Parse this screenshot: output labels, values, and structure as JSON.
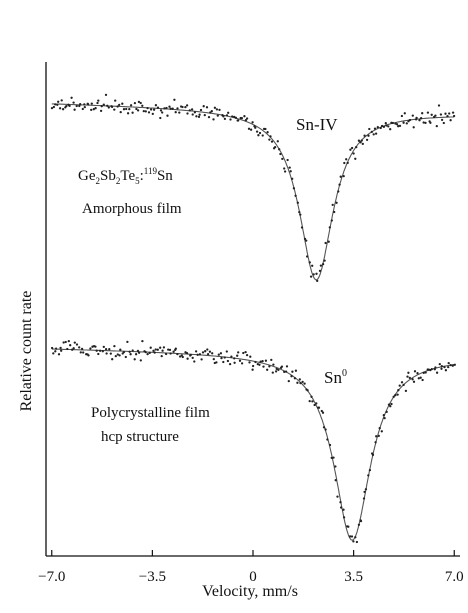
{
  "chart_data": {
    "type": "scatter",
    "xlabel": "Velocity, mm/s",
    "ylabel": "Relative count rate",
    "xlim": [
      -7.2,
      7.2
    ],
    "x_ticks": [
      -7.0,
      -3.5,
      0,
      3.5,
      7.0
    ],
    "x_tick_labels": [
      "−7.0",
      "−3.5",
      "0",
      "3.5",
      "7.0"
    ],
    "y_ticks_shown": false,
    "colors": {
      "points": "#222222",
      "fit": "#555555",
      "axis": "#111111"
    },
    "series": [
      {
        "name": "Sn-IV",
        "label": "Sn-IV",
        "position": "upper",
        "fit": {
          "shape": "lorentzian",
          "center": 2.2,
          "half_width": 0.72,
          "depth": 0.92,
          "baseline_slope": -0.004
        },
        "annotation": [
          "Ge₂Sb₂Te₅:¹¹⁹Sn",
          "Amorphous film"
        ]
      },
      {
        "name": "Sn⁰",
        "label": "Sn⁰",
        "position": "lower",
        "fit": {
          "shape": "lorentzian",
          "center": 3.45,
          "half_width": 0.78,
          "depth": 0.98,
          "baseline_slope": -0.003
        },
        "annotation": [
          "Polycrystalline film",
          "hcp structure"
        ]
      }
    ]
  },
  "text": {
    "sn_iv_label": "Sn-IV",
    "sn0_label": "Sn",
    "sn0_sup": "0",
    "upper_formula": {
      "ge": "Ge",
      "s1": "2",
      "sb": "Sb",
      "s2": "2",
      "te": "Te",
      "s3": "5",
      "colon": ":",
      "iso": "119",
      "sn": "Sn"
    },
    "upper_desc": "Amorphous film",
    "lower_desc_1": "Polycrystalline film",
    "lower_desc_2": "hcp structure"
  }
}
